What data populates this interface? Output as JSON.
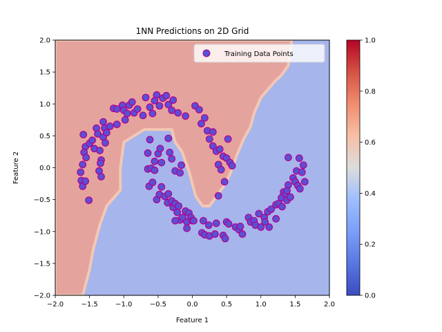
{
  "chart_data": {
    "type": "scatter",
    "title": "1NN Predictions on 2D Grid",
    "xlabel": "Feature 1",
    "ylabel": "Feature 2",
    "xlim": [
      -2.0,
      2.0
    ],
    "ylim": [
      -2.0,
      2.0
    ],
    "x_ticks": [
      "−2.0",
      "−1.5",
      "−1.0",
      "−0.5",
      "0.0",
      "0.5",
      "1.0",
      "1.5",
      "2.0"
    ],
    "y_ticks": [
      "−2.0",
      "−1.5",
      "−1.0",
      "−0.5",
      "0.0",
      "0.5",
      "1.0",
      "1.5",
      "2.0"
    ],
    "grid": false,
    "legend": {
      "position": "top-right",
      "entries": [
        "Training Data Points"
      ]
    },
    "colorbar": {
      "colormap": "coolwarm",
      "range": [
        0.0,
        1.0
      ],
      "ticks": [
        "0.0",
        "0.2",
        "0.4",
        "0.6",
        "0.8",
        "1.0"
      ]
    },
    "background": {
      "type": "decision-region",
      "class_1_color": "#e5a39e",
      "class_0_color": "#a6b5ec",
      "class_1_region": [
        [
          -2.0,
          2.0
        ],
        [
          1.45,
          2.0
        ],
        [
          1.4,
          1.6
        ],
        [
          1.3,
          1.45
        ],
        [
          1.2,
          1.35
        ],
        [
          1.0,
          1.1
        ],
        [
          0.9,
          0.85
        ],
        [
          0.85,
          0.65
        ],
        [
          0.75,
          0.45
        ],
        [
          0.65,
          0.2
        ],
        [
          0.55,
          -0.1
        ],
        [
          0.45,
          -0.3
        ],
        [
          0.25,
          -0.6
        ],
        [
          0.15,
          -0.6
        ],
        [
          0.05,
          -0.45
        ],
        [
          0.0,
          -0.25
        ],
        [
          -0.05,
          -0.05
        ],
        [
          -0.15,
          0.25
        ],
        [
          -0.25,
          0.4
        ],
        [
          -0.3,
          0.6
        ],
        [
          -0.7,
          0.6
        ],
        [
          -1.0,
          0.4
        ],
        [
          -1.05,
          0.0
        ],
        [
          -1.05,
          -0.35
        ],
        [
          -1.25,
          -0.6
        ],
        [
          -1.35,
          -0.9
        ],
        [
          -1.45,
          -1.3
        ],
        [
          -1.5,
          -1.6
        ],
        [
          -1.6,
          -2.0
        ],
        [
          -2.0,
          -2.0
        ]
      ]
    },
    "series": [
      {
        "name": "Training Data Points",
        "fill": "#5b4fd4",
        "edge": "#b3008c",
        "points": [
          [
            -1.59,
            0.52
          ],
          [
            -1.56,
            0.33
          ],
          [
            -1.58,
            0.24
          ],
          [
            -1.55,
            0.16
          ],
          [
            -1.6,
            0.05
          ],
          [
            -1.63,
            -0.07
          ],
          [
            -1.62,
            -0.2
          ],
          [
            -1.6,
            -0.29
          ],
          [
            -1.56,
            -0.21
          ],
          [
            -1.51,
            -0.51
          ],
          [
            -1.5,
            0.38
          ],
          [
            -1.46,
            0.43
          ],
          [
            -1.43,
            0.3
          ],
          [
            -1.4,
            0.62
          ],
          [
            -1.38,
            0.53
          ],
          [
            -1.35,
            0.27
          ],
          [
            -1.33,
            0.12
          ],
          [
            -1.36,
            -0.05
          ],
          [
            -1.33,
            -0.14
          ],
          [
            -1.34,
            0.07
          ],
          [
            -1.3,
            0.72
          ],
          [
            -1.28,
            0.62
          ],
          [
            -1.3,
            0.48
          ],
          [
            -1.27,
            0.39
          ],
          [
            -1.25,
            0.55
          ],
          [
            -1.2,
            0.65
          ],
          [
            -1.15,
            0.93
          ],
          [
            -1.1,
            0.68
          ],
          [
            -1.1,
            0.92
          ],
          [
            -1.02,
            0.98
          ],
          [
            -1.0,
            0.9
          ],
          [
            -0.98,
            0.75
          ],
          [
            -0.95,
            0.85
          ],
          [
            -0.92,
            0.98
          ],
          [
            -0.88,
            1.03
          ],
          [
            -0.85,
            0.86
          ],
          [
            -0.8,
            0.92
          ],
          [
            -0.72,
            0.82
          ],
          [
            -0.68,
            1.1
          ],
          [
            -0.62,
            0.95
          ],
          [
            -0.58,
            0.85
          ],
          [
            -0.55,
            1.05
          ],
          [
            -0.52,
            1.14
          ],
          [
            -0.48,
            0.97
          ],
          [
            -0.43,
            1.09
          ],
          [
            -0.38,
            1.13
          ],
          [
            -0.35,
            0.99
          ],
          [
            -0.3,
            0.9
          ],
          [
            -0.28,
            1.06
          ],
          [
            -0.21,
            0.86
          ],
          [
            -0.1,
            0.81
          ],
          [
            0.04,
            0.97
          ],
          [
            0.1,
            0.91
          ],
          [
            0.13,
            0.69
          ],
          [
            0.18,
            0.78
          ],
          [
            0.22,
            0.58
          ],
          [
            0.25,
            0.45
          ],
          [
            0.3,
            0.34
          ],
          [
            0.35,
            0.26
          ],
          [
            0.4,
            0.29
          ],
          [
            0.45,
            0.18
          ],
          [
            0.38,
            0.05
          ],
          [
            0.42,
            -0.03
          ],
          [
            0.5,
            0.15
          ],
          [
            0.47,
            -0.22
          ],
          [
            0.55,
            0.08
          ],
          [
            0.58,
            0.03
          ],
          [
            0.52,
            0.45
          ],
          [
            0.38,
            -0.44
          ],
          [
            0.3,
            0.56
          ],
          [
            -0.62,
            0.44
          ],
          [
            -0.65,
            0.23
          ],
          [
            -0.65,
            -0.02
          ],
          [
            -0.6,
            -0.01
          ],
          [
            -0.55,
            0.1
          ],
          [
            -0.5,
            0.22
          ],
          [
            -0.47,
            0.3
          ],
          [
            -0.45,
            0.08
          ],
          [
            -0.55,
            -0.04
          ],
          [
            -0.35,
            0.46
          ],
          [
            -0.33,
            0.24
          ],
          [
            -0.3,
            0.14
          ],
          [
            -0.25,
            -0.05
          ],
          [
            -0.18,
            -0.08
          ],
          [
            -0.16,
            0.04
          ],
          [
            -0.63,
            -0.29
          ],
          [
            -0.58,
            -0.23
          ],
          [
            -0.52,
            -0.5
          ],
          [
            -0.48,
            -0.42
          ],
          [
            -0.45,
            -0.3
          ],
          [
            -0.4,
            -0.45
          ],
          [
            -0.36,
            -0.55
          ],
          [
            -0.35,
            -0.41
          ],
          [
            -0.3,
            -0.52
          ],
          [
            -0.28,
            -0.62
          ],
          [
            -0.25,
            -0.56
          ],
          [
            -0.22,
            -0.7
          ],
          [
            -0.2,
            -0.6
          ],
          [
            -0.18,
            -0.82
          ],
          [
            -0.14,
            -0.78
          ],
          [
            -0.1,
            -0.68
          ],
          [
            -0.08,
            -0.85
          ],
          [
            -0.05,
            -0.71
          ],
          [
            -0.02,
            -0.78
          ],
          [
            0.0,
            -0.83
          ],
          [
            -0.25,
            -0.83
          ],
          [
            0.02,
            -0.83
          ],
          [
            -0.08,
            -0.95
          ],
          [
            0.14,
            -1.02
          ],
          [
            0.16,
            -0.83
          ],
          [
            0.18,
            -1.05
          ],
          [
            0.24,
            -0.9
          ],
          [
            0.25,
            -1.07
          ],
          [
            0.33,
            -1.04
          ],
          [
            0.35,
            -0.87
          ],
          [
            0.45,
            -1.06
          ],
          [
            0.48,
            -1.11
          ],
          [
            0.5,
            -0.85
          ],
          [
            0.53,
            -0.88
          ],
          [
            0.63,
            -0.93
          ],
          [
            0.68,
            -0.97
          ],
          [
            0.7,
            -0.92
          ],
          [
            0.73,
            -1.04
          ],
          [
            0.82,
            -0.78
          ],
          [
            0.85,
            -0.85
          ],
          [
            0.9,
            -0.83
          ],
          [
            0.92,
            -0.9
          ],
          [
            0.97,
            -0.72
          ],
          [
            1.0,
            -0.93
          ],
          [
            1.05,
            -0.78
          ],
          [
            1.06,
            -0.85
          ],
          [
            1.1,
            -0.69
          ],
          [
            1.12,
            -0.93
          ],
          [
            1.15,
            -0.65
          ],
          [
            1.22,
            -0.8
          ],
          [
            1.22,
            -0.58
          ],
          [
            1.26,
            -0.56
          ],
          [
            1.3,
            -0.47
          ],
          [
            1.31,
            -0.61
          ],
          [
            1.33,
            -0.38
          ],
          [
            1.36,
            -0.41
          ],
          [
            1.38,
            -0.51
          ],
          [
            1.38,
            -0.36
          ],
          [
            1.4,
            -0.27
          ],
          [
            1.4,
            0.16
          ],
          [
            1.43,
            -0.46
          ],
          [
            1.47,
            -0.16
          ],
          [
            1.5,
            -0.22
          ],
          [
            1.52,
            -0.05
          ],
          [
            1.54,
            -0.28
          ],
          [
            1.56,
            0.15
          ],
          [
            1.57,
            -0.33
          ],
          [
            1.6,
            -0.07
          ],
          [
            1.62,
            0.04
          ],
          [
            1.64,
            -0.22
          ]
        ]
      }
    ]
  }
}
